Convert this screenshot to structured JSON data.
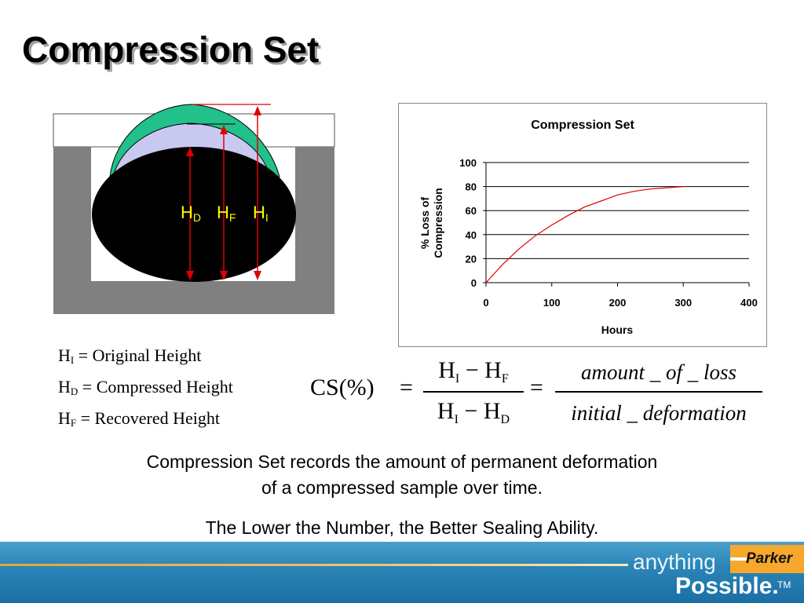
{
  "slide": {
    "title": "Compression Set",
    "definitions": [
      {
        "symbol": "H",
        "sub": "I",
        "text": " = Original Height"
      },
      {
        "symbol": "H",
        "sub": "D",
        "text": " = Compressed Height"
      },
      {
        "symbol": "H",
        "sub": "F",
        "text": " = Recovered Height"
      }
    ],
    "diagram_labels": [
      {
        "symbol": "H",
        "sub": "D"
      },
      {
        "symbol": "H",
        "sub": "F"
      },
      {
        "symbol": "H",
        "sub": "I"
      }
    ],
    "formula": {
      "lhs": "CS(%)",
      "equals": "=",
      "frac1_num": {
        "a": "H",
        "a_sub": "I",
        "op": " − ",
        "b": "H",
        "b_sub": "F"
      },
      "frac1_den": {
        "a": "H",
        "a_sub": "I",
        "op": " − ",
        "b": "H",
        "b_sub": "D"
      },
      "frac2_num": "amount _ of  _ loss",
      "frac2_den": "initial _ deformation"
    },
    "caption_line1": "Compression Set records the amount of permanent deformation",
    "caption_line2": "of a compressed sample over time.",
    "caption_line3": "The Lower the Number, the Better Sealing Ability.",
    "footer": {
      "anything": "anything",
      "possible": "Possible.",
      "tm": "TM",
      "logo_text": "Parker"
    }
  },
  "colors": {
    "accent_red": "#e00000",
    "oring_green": "#22c08a",
    "oring_lavender": "#c8c8f0",
    "gland_gray": "#808080",
    "label_yellow": "#ffff00"
  },
  "chart_data": {
    "type": "line",
    "title": "Compression Set",
    "xlabel": "Hours",
    "ylabel": "% Loss of Compression",
    "xlim": [
      0,
      400
    ],
    "ylim": [
      0,
      100
    ],
    "xticks": [
      0,
      100,
      200,
      300,
      400
    ],
    "yticks": [
      0,
      20,
      40,
      60,
      80,
      100
    ],
    "grid": "horizontal",
    "series": [
      {
        "color": "#e00000",
        "x": [
          0,
          25,
          50,
          75,
          100,
          125,
          150,
          175,
          200,
          225,
          250,
          275,
          300
        ],
        "y": [
          0,
          15,
          28,
          39,
          48,
          56,
          63,
          68,
          73,
          76,
          78,
          79,
          80
        ]
      }
    ]
  }
}
